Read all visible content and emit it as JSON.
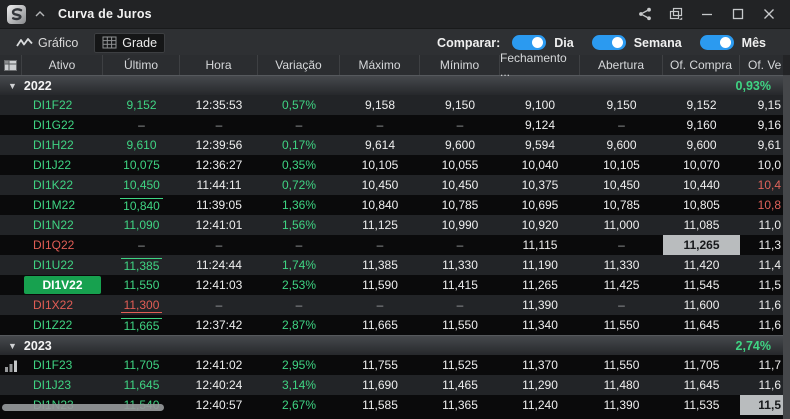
{
  "window": {
    "title": "Curva de Juros",
    "controls": {
      "share": "share",
      "popout": "popout",
      "minimize": "minimize",
      "maximize": "maximize",
      "close": "close"
    }
  },
  "toolbar": {
    "tabs": [
      {
        "label": "Gráfico",
        "icon": "line-chart-icon",
        "active": false
      },
      {
        "label": "Grade",
        "icon": "grid-icon",
        "active": true
      }
    ],
    "compare": {
      "label": "Comparar:",
      "toggles": [
        {
          "label": "Dia",
          "on": true
        },
        {
          "label": "Semana",
          "on": true
        },
        {
          "label": "Mês",
          "on": true
        }
      ]
    }
  },
  "colors": {
    "accent_blue": "#2b9af0",
    "positive_green": "#3fd483",
    "negative_red": "#e25d55",
    "selected_green_bg": "#17a14f",
    "flash_gray_bg": "#b9bcbe"
  },
  "table": {
    "columns": [
      "Ativo",
      "Último",
      "Hora",
      "Variação",
      "Máximo",
      "Mínimo",
      "Fechamento ...",
      "Abertura",
      "Of. Compra",
      "Of. Ve"
    ],
    "groups": [
      {
        "year": "2022",
        "change": "0,93%",
        "rows": [
          {
            "ativo": "DI1F22",
            "ultimo": "9,152",
            "hora": "12:35:53",
            "variacao": "0,57%",
            "maximo": "9,158",
            "minimo": "9,150",
            "fechamento": "9,100",
            "abertura": "9,150",
            "of_compra": "9,152",
            "of_venda": "9,15"
          },
          {
            "ativo": "DI1G22",
            "ultimo": "–",
            "hora": "–",
            "variacao": "–",
            "maximo": "–",
            "minimo": "–",
            "fechamento": "9,124",
            "abertura": "–",
            "of_compra": "9,160",
            "of_venda": "9,16"
          },
          {
            "ativo": "DI1H22",
            "ultimo": "9,610",
            "hora": "12:39:56",
            "variacao": "0,17%",
            "maximo": "9,614",
            "minimo": "9,600",
            "fechamento": "9,594",
            "abertura": "9,600",
            "of_compra": "9,600",
            "of_venda": "9,61"
          },
          {
            "ativo": "DI1J22",
            "ultimo": "10,075",
            "hora": "12:36:27",
            "variacao": "0,35%",
            "maximo": "10,105",
            "minimo": "10,055",
            "fechamento": "10,040",
            "abertura": "10,105",
            "of_compra": "10,070",
            "of_venda": "10,0"
          },
          {
            "ativo": "DI1K22",
            "ultimo": "10,450",
            "hora": "11:44:11",
            "variacao": "0,72%",
            "maximo": "10,450",
            "minimo": "10,450",
            "fechamento": "10,375",
            "abertura": "10,450",
            "of_compra": "10,440",
            "of_venda": "10,4",
            "of_venda_color": "red"
          },
          {
            "ativo": "DI1M22",
            "ultimo": "10,840",
            "ultimo_mark": "high",
            "hora": "11:39:05",
            "variacao": "1,36%",
            "maximo": "10,840",
            "minimo": "10,785",
            "fechamento": "10,695",
            "abertura": "10,785",
            "of_compra": "10,805",
            "of_venda": "10,8",
            "of_venda_color": "red"
          },
          {
            "ativo": "DI1N22",
            "ultimo": "11,090",
            "hora": "12:41:01",
            "variacao": "1,56%",
            "maximo": "11,125",
            "minimo": "10,990",
            "fechamento": "10,920",
            "abertura": "11,000",
            "of_compra": "11,085",
            "of_venda": "11,0"
          },
          {
            "ativo": "DI1Q22",
            "ativo_color": "red",
            "ultimo": "–",
            "hora": "–",
            "variacao": "–",
            "maximo": "–",
            "minimo": "–",
            "fechamento": "11,115",
            "abertura": "–",
            "of_compra": "11,265",
            "of_compra_flash": true,
            "of_venda": "11,3"
          },
          {
            "ativo": "DI1U22",
            "ultimo": "11,385",
            "ultimo_mark": "high",
            "hora": "11:24:44",
            "variacao": "1,74%",
            "maximo": "11,385",
            "minimo": "11,330",
            "fechamento": "11,190",
            "abertura": "11,330",
            "of_compra": "11,420",
            "of_venda": "11,4"
          },
          {
            "ativo": "DI1V22",
            "selected": true,
            "ultimo": "11,550",
            "hora": "12:41:03",
            "variacao": "2,53%",
            "maximo": "11,590",
            "minimo": "11,415",
            "fechamento": "11,265",
            "abertura": "11,425",
            "of_compra": "11,545",
            "of_venda": "11,5"
          },
          {
            "ativo": "DI1X22",
            "ativo_color": "red",
            "ultimo": "11,300",
            "ultimo_mark": "low",
            "hora": "–",
            "variacao": "–",
            "maximo": "–",
            "minimo": "–",
            "fechamento": "11,390",
            "abertura": "–",
            "of_compra": "11,600",
            "of_venda": "11,6"
          },
          {
            "ativo": "DI1Z22",
            "ultimo": "11,665",
            "ultimo_mark": "high",
            "hora": "12:37:42",
            "variacao": "2,87%",
            "maximo": "11,665",
            "minimo": "11,550",
            "fechamento": "11,340",
            "abertura": "11,550",
            "of_compra": "11,645",
            "of_venda": "11,6"
          }
        ]
      },
      {
        "year": "2023",
        "change": "2,74%",
        "rows": [
          {
            "ativo": "DI1F23",
            "volume_icon": true,
            "ultimo": "11,705",
            "hora": "12:41:02",
            "variacao": "2,95%",
            "maximo": "11,755",
            "minimo": "11,525",
            "fechamento": "11,370",
            "abertura": "11,550",
            "of_compra": "11,705",
            "of_venda": "11,7"
          },
          {
            "ativo": "DI1J23",
            "ultimo": "11,645",
            "hora": "12:40:24",
            "variacao": "3,14%",
            "maximo": "11,690",
            "minimo": "11,465",
            "fechamento": "11,290",
            "abertura": "11,480",
            "of_compra": "11,645",
            "of_venda": "11,6"
          },
          {
            "ativo": "DI1N23",
            "ultimo": "11,540",
            "hora": "12:40:57",
            "variacao": "2,67%",
            "maximo": "11,585",
            "minimo": "11,365",
            "fechamento": "11,240",
            "abertura": "11,390",
            "of_compra": "11,535",
            "of_venda": "11,5",
            "of_venda_flash": true
          }
        ]
      }
    ]
  }
}
